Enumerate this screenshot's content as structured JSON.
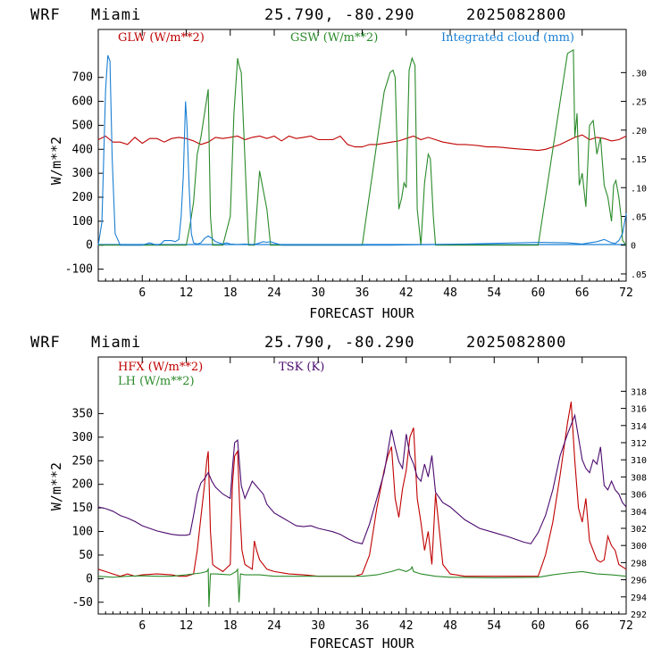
{
  "panels": [
    {
      "header": {
        "model": "WRF",
        "location": "Miami",
        "coords": "25.790, -80.290",
        "date": "2025082800"
      },
      "xlabel": "FORECAST HOUR",
      "ylabel": "W/m**2",
      "xticks": [
        6,
        12,
        18,
        24,
        30,
        36,
        42,
        48,
        54,
        60,
        66,
        72
      ],
      "legend": [
        {
          "label": "GLW (W/m**2)",
          "color": "#c00000"
        },
        {
          "label": "GSW (W/m**2)",
          "color": "#2a8a2a"
        },
        {
          "label": "Integrated cloud (mm)",
          "color": "#1a7fd4"
        }
      ]
    },
    {
      "header": {
        "model": "WRF",
        "location": "Miami",
        "coords": "25.790, -80.290",
        "date": "2025082800"
      },
      "xlabel": "FORECAST HOUR",
      "ylabel": "W/m**2",
      "xticks": [
        6,
        12,
        18,
        24,
        30,
        36,
        42,
        48,
        54,
        60,
        66,
        72
      ],
      "legend": [
        {
          "label": "HFX (W/m**2)",
          "color": "#c00000"
        },
        {
          "label": "LH  (W/m**2)",
          "color": "#2a8a2a"
        },
        {
          "label": "TSK (K)",
          "color": "#4b0a6e"
        }
      ]
    }
  ],
  "chart_data": [
    {
      "type": "line",
      "xlim": [
        0,
        72
      ],
      "ylim": [
        -150,
        900
      ],
      "y2lim": [
        -0.0625,
        0.375
      ],
      "yticks": [
        -100,
        0,
        100,
        200,
        300,
        400,
        500,
        600,
        700
      ],
      "ytick_labels": [
        "-100",
        "0",
        "100",
        "200",
        "300",
        "400",
        "500",
        "600",
        "700"
      ],
      "y2ticks": [
        -0.05,
        0,
        0.05,
        0.1,
        0.15,
        0.2,
        0.25,
        0.3
      ],
      "y2tick_labels": [
        ".05",
        "0",
        ".05",
        ".10",
        ".15",
        ".20",
        ".25",
        ".30"
      ],
      "series": [
        {
          "name": "GLW (W/m**2)",
          "color": "#c00000",
          "axis": "left",
          "x": [
            0,
            1,
            2,
            3,
            4,
            5,
            6,
            7,
            8,
            9,
            10,
            11,
            12,
            13,
            14,
            15,
            16,
            17,
            18,
            19,
            20,
            21,
            22,
            23,
            24,
            25,
            26,
            27,
            28,
            29,
            30,
            31,
            32,
            33,
            34,
            35,
            36,
            37,
            38,
            39,
            40,
            41,
            42,
            43,
            44,
            45,
            46,
            47,
            48,
            49,
            50,
            51,
            52,
            53,
            54,
            55,
            56,
            57,
            58,
            59,
            60,
            61,
            62,
            63,
            64,
            65,
            66,
            67,
            68,
            69,
            70,
            71,
            72
          ],
          "y": [
            440,
            455,
            430,
            430,
            420,
            450,
            425,
            445,
            445,
            430,
            445,
            450,
            445,
            435,
            420,
            430,
            450,
            445,
            450,
            455,
            440,
            450,
            455,
            445,
            455,
            435,
            455,
            445,
            450,
            455,
            440,
            440,
            440,
            455,
            420,
            410,
            410,
            420,
            420,
            425,
            430,
            435,
            445,
            455,
            440,
            450,
            440,
            430,
            425,
            420,
            420,
            418,
            415,
            410,
            410,
            408,
            405,
            402,
            400,
            398,
            395,
            400,
            410,
            420,
            435,
            450,
            460,
            440,
            450,
            445,
            435,
            440,
            455
          ]
        },
        {
          "name": "GSW (W/m**2)",
          "color": "#2a8a2a",
          "axis": "left",
          "x": [
            0,
            12,
            12.5,
            13,
            13.5,
            14,
            14.5,
            15,
            15.3,
            15.6,
            16,
            17,
            18,
            18.5,
            19,
            19.2,
            19.5,
            20.5,
            21,
            21.3,
            22,
            23,
            23.5,
            35.5,
            36,
            39,
            39.8,
            40.2,
            40.5,
            41,
            41.4,
            41.7,
            42,
            42.4,
            42.8,
            43.2,
            43.5,
            44,
            44.5,
            45,
            45.3,
            45.7,
            46,
            47,
            48,
            59.5,
            60,
            63,
            64,
            64.8,
            65,
            65.3,
            65.6,
            66,
            66.5,
            67,
            67.5,
            68,
            68.5,
            69,
            69.5,
            70,
            70.3,
            70.6,
            71,
            71.3,
            71.5,
            72
          ],
          "y": [
            0,
            0,
            80,
            180,
            380,
            450,
            550,
            650,
            120,
            0,
            0,
            0,
            120,
            550,
            780,
            750,
            720,
            0,
            0,
            0,
            310,
            150,
            0,
            0,
            0,
            640,
            720,
            730,
            700,
            150,
            200,
            260,
            240,
            730,
            780,
            750,
            150,
            0,
            260,
            380,
            360,
            120,
            0,
            0,
            0,
            0,
            0,
            600,
            800,
            815,
            450,
            550,
            250,
            300,
            160,
            500,
            520,
            380,
            450,
            250,
            200,
            100,
            250,
            270,
            200,
            120,
            20,
            0
          ]
        },
        {
          "name": "Integrated cloud (mm)",
          "color": "#1a7fd4",
          "axis": "right",
          "x": [
            0,
            0.5,
            1,
            1.3,
            1.6,
            1.9,
            2.3,
            3,
            4,
            5,
            6,
            6.5,
            7,
            7.5,
            8,
            8.5,
            9,
            10,
            10.5,
            11,
            11.3,
            11.6,
            11.9,
            12.1,
            12.4,
            12.7,
            13,
            13.5,
            14,
            14.5,
            15,
            15.5,
            16,
            16.5,
            17,
            17.5,
            18,
            19,
            20,
            21,
            21.5,
            22,
            22.5,
            23,
            23.5,
            24,
            24.5,
            25,
            26,
            40,
            50,
            60,
            64,
            66,
            67,
            68,
            69,
            70,
            70.5,
            71,
            71.5,
            72
          ],
          "y": [
            0,
            0.04,
            0.27,
            0.33,
            0.32,
            0.15,
            0.02,
            0,
            0,
            0,
            0,
            0.002,
            0.004,
            0.002,
            0,
            0.002,
            0.008,
            0.008,
            0.006,
            0.01,
            0.05,
            0.12,
            0.25,
            0.21,
            0.1,
            0.02,
            0.004,
            0.002,
            0.004,
            0.012,
            0.016,
            0.012,
            0.006,
            0.004,
            0.002,
            0.004,
            0.002,
            0.001,
            0.002,
            0.001,
            0.002,
            0.004,
            0.006,
            0.005,
            0.006,
            0.004,
            0.002,
            0,
            0,
            0,
            0.002,
            0.005,
            0.004,
            0.002,
            0.004,
            0.006,
            0.01,
            0.004,
            0.003,
            0.008,
            0.02,
            0.055
          ]
        }
      ]
    },
    {
      "type": "line",
      "xlim": [
        0,
        72
      ],
      "ylim": [
        -75,
        470
      ],
      "y2lim": [
        292,
        322
      ],
      "yticks": [
        -50,
        0,
        50,
        100,
        150,
        200,
        250,
        300,
        350
      ],
      "ytick_labels": [
        "-50",
        "0",
        "50",
        "100",
        "150",
        "200",
        "250",
        "300",
        "350"
      ],
      "y2ticks": [
        292,
        294,
        296,
        298,
        300,
        302,
        304,
        306,
        308,
        310,
        312,
        314,
        316,
        318
      ],
      "y2tick_labels": [
        "292",
        "294",
        "296",
        "298",
        "300",
        "302",
        "304",
        "306",
        "308",
        "310",
        "312",
        "314",
        "316",
        "318"
      ],
      "series": [
        {
          "name": "HFX (W/m**2)",
          "color": "#c00000",
          "axis": "left",
          "x": [
            0,
            1,
            2,
            3,
            4,
            5,
            6,
            8,
            10,
            11,
            12,
            13,
            13.5,
            14,
            14.5,
            14.8,
            15,
            15.3,
            15.6,
            16,
            17,
            18,
            18.3,
            18.6,
            19,
            19.3,
            19.6,
            20,
            20.5,
            21,
            21.3,
            21.6,
            22,
            23,
            24,
            26,
            28,
            30,
            32,
            34,
            35,
            36,
            37,
            38,
            39,
            39.5,
            40,
            40.5,
            41,
            41.5,
            42,
            42.5,
            43,
            43.5,
            44,
            44.5,
            45,
            45.5,
            46,
            47,
            48,
            50,
            54,
            58,
            59,
            60,
            61,
            62,
            63,
            64,
            64.5,
            65,
            65.5,
            66,
            66.5,
            67,
            67.5,
            68,
            68.5,
            69,
            69.5,
            70,
            70.5,
            71,
            71.5,
            72
          ],
          "y": [
            20,
            15,
            10,
            5,
            10,
            5,
            8,
            10,
            8,
            5,
            5,
            10,
            60,
            130,
            200,
            250,
            270,
            100,
            30,
            25,
            15,
            30,
            200,
            260,
            270,
            150,
            60,
            30,
            25,
            20,
            80,
            60,
            40,
            20,
            15,
            10,
            8,
            5,
            5,
            5,
            5,
            10,
            50,
            150,
            230,
            260,
            280,
            170,
            130,
            190,
            230,
            300,
            320,
            170,
            120,
            60,
            100,
            30,
            180,
            30,
            10,
            5,
            5,
            5,
            5,
            5,
            50,
            120,
            220,
            330,
            375,
            250,
            150,
            120,
            170,
            80,
            60,
            40,
            35,
            40,
            90,
            70,
            60,
            30,
            25,
            20
          ]
        },
        {
          "name": "LH  (W/m**2)",
          "color": "#2a8a2a",
          "axis": "left",
          "x": [
            0,
            2,
            4,
            6,
            8,
            10,
            12,
            14,
            14.8,
            15,
            15.1,
            15.3,
            16,
            18,
            18.8,
            19,
            19.2,
            19.4,
            20,
            22,
            24,
            30,
            36,
            38,
            40,
            41,
            42,
            42.6,
            42.8,
            43,
            44,
            46,
            48,
            54,
            60,
            62,
            64,
            66,
            68,
            70,
            72
          ],
          "y": [
            5,
            3,
            5,
            6,
            5,
            5,
            8,
            12,
            15,
            20,
            -60,
            10,
            10,
            8,
            15,
            20,
            -50,
            10,
            8,
            8,
            5,
            5,
            5,
            8,
            15,
            20,
            15,
            20,
            25,
            15,
            10,
            5,
            3,
            2,
            3,
            8,
            12,
            15,
            10,
            8,
            5
          ]
        },
        {
          "name": "TSK (K)",
          "color": "#4b0a6e",
          "axis": "right",
          "x": [
            0,
            1,
            2,
            3,
            4,
            5,
            6,
            7,
            8,
            9,
            10,
            11,
            12,
            12.5,
            13,
            13.5,
            14,
            14.5,
            15,
            15.5,
            16,
            17,
            18,
            18.3,
            18.6,
            19,
            19.5,
            20,
            21,
            21.5,
            22,
            22.5,
            23,
            24,
            25,
            26,
            27,
            28,
            29,
            30,
            31,
            32,
            33,
            34,
            35,
            36,
            37,
            38,
            39,
            40,
            40.5,
            41,
            41.5,
            42,
            42.5,
            43,
            43.5,
            44,
            44.5,
            45,
            45.5,
            46,
            47,
            48,
            50,
            52,
            54,
            56,
            58,
            59,
            60,
            61,
            62,
            63,
            64,
            65,
            66,
            66.5,
            67,
            67.5,
            68,
            68.5,
            69,
            69.5,
            70,
            70.5,
            71,
            71.5,
            72
          ],
          "y": [
            304.5,
            304.3,
            304,
            303.5,
            303.2,
            302.8,
            302.3,
            302,
            301.7,
            301.5,
            301.3,
            301.2,
            301.2,
            301.3,
            303.5,
            306,
            307.3,
            307.8,
            308.5,
            307.5,
            306.8,
            306,
            305.5,
            309,
            312,
            312.3,
            307,
            305.5,
            307.5,
            307,
            306.5,
            306,
            304.8,
            303.8,
            303.3,
            302.8,
            302.3,
            302.2,
            302.3,
            302,
            301.8,
            301.6,
            301.3,
            300.8,
            300.4,
            300.2,
            302.5,
            305.5,
            308.5,
            313.5,
            311.5,
            309.8,
            309,
            313,
            310.5,
            309.5,
            308,
            307.5,
            309.5,
            308,
            310.5,
            306.2,
            305,
            304.5,
            303,
            302,
            301.5,
            301,
            300.4,
            300.2,
            301.5,
            303.5,
            306.5,
            310.5,
            313,
            315.2,
            310,
            309,
            308.5,
            310,
            309.5,
            311.5,
            307,
            306.5,
            307.5,
            306.5,
            306,
            305,
            304.5
          ]
        }
      ]
    }
  ]
}
